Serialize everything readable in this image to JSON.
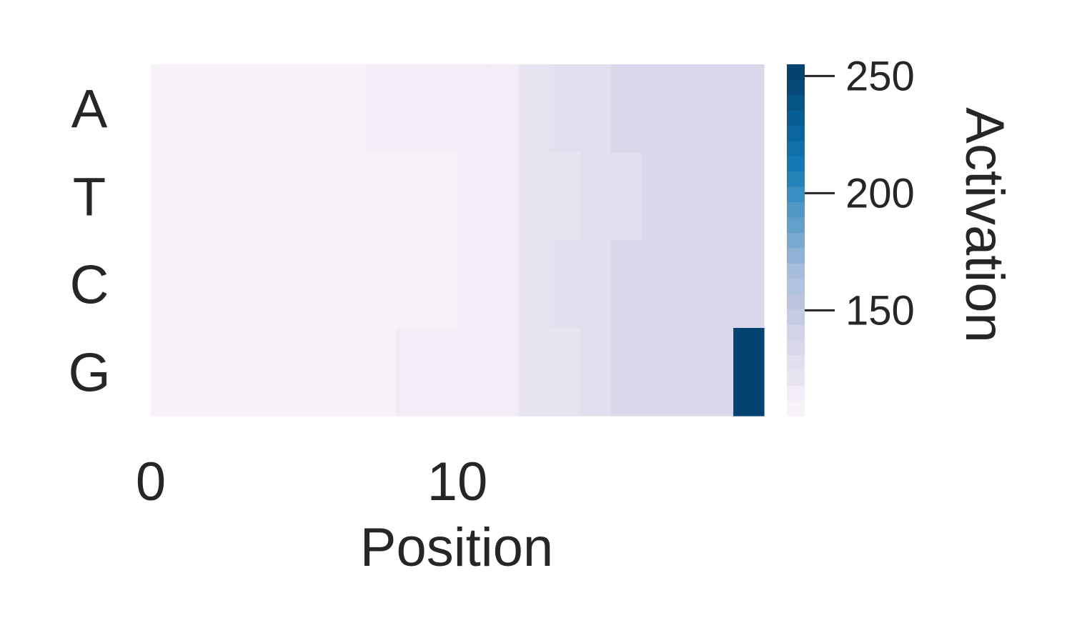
{
  "chart_data": {
    "type": "heatmap",
    "xlabel": "Position",
    "colorbar_label": "Activation",
    "rows": [
      "A",
      "T",
      "C",
      "G"
    ],
    "columns": [
      0,
      1,
      2,
      3,
      4,
      5,
      6,
      7,
      8,
      9,
      10,
      11,
      12,
      13,
      14,
      15,
      16,
      17,
      18,
      19
    ],
    "x_ticks": [
      0,
      10
    ],
    "colorbar_ticks": [
      150,
      200,
      250
    ],
    "vmin": 105,
    "vmax": 255,
    "values": [
      [
        105,
        105,
        105,
        105,
        105,
        105,
        105,
        110,
        110,
        110,
        115,
        115,
        120,
        125,
        125,
        130,
        130,
        130,
        130,
        135
      ],
      [
        105,
        105,
        105,
        105,
        105,
        105,
        105,
        105,
        105,
        105,
        115,
        115,
        120,
        120,
        125,
        125,
        130,
        130,
        135,
        135
      ],
      [
        105,
        105,
        105,
        105,
        105,
        105,
        105,
        105,
        105,
        105,
        115,
        115,
        120,
        125,
        125,
        130,
        130,
        130,
        130,
        135
      ],
      [
        105,
        105,
        105,
        105,
        105,
        105,
        105,
        105,
        110,
        110,
        115,
        115,
        120,
        120,
        125,
        130,
        130,
        130,
        135,
        255
      ]
    ],
    "colormap": [
      "#f7f1f8",
      "#f1ecf5",
      "#e8e5f1",
      "#e1e0ee",
      "#d9d8ea",
      "#d1d3e7",
      "#c6cbe3",
      "#bac4df",
      "#b0c3de",
      "#a6bddb",
      "#8fb3d7",
      "#79a8d0",
      "#629fcb",
      "#4f98c5",
      "#3990c0",
      "#2484ba",
      "#1478b4",
      "#0f70ab",
      "#0965a0",
      "#055d93",
      "#045485",
      "#04497a",
      "#034370"
    ]
  }
}
